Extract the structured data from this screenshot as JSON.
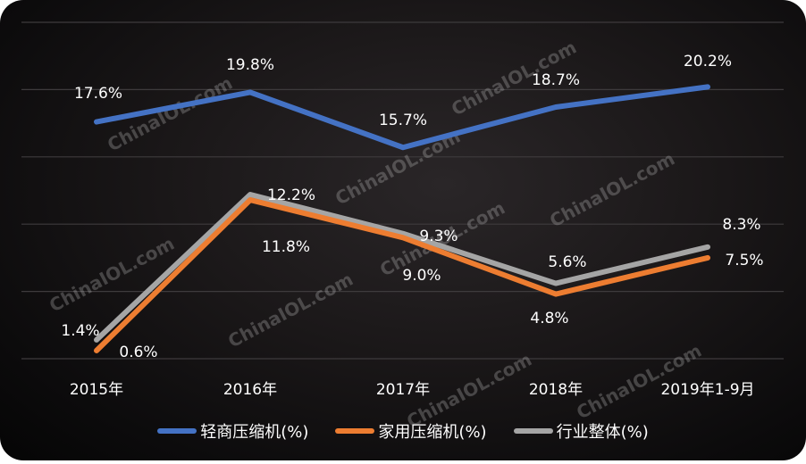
{
  "chart_data": {
    "type": "line",
    "title": "",
    "xlabel": "",
    "ylabel": "",
    "categories": [
      "2015年",
      "2016年",
      "2017年",
      "2018年",
      "2019年1-9月"
    ],
    "ylim": [
      0,
      25
    ],
    "grid": true,
    "legend_position": "bottom",
    "series": [
      {
        "name": "轻商压缩机(%)",
        "color": "#4472c4",
        "values": [
          17.6,
          19.8,
          15.7,
          18.7,
          20.2
        ],
        "labels": [
          "17.6%",
          "19.8%",
          "15.7%",
          "18.7%",
          "20.2%"
        ]
      },
      {
        "name": "家用压缩机(%)",
        "color": "#ed7d31",
        "values": [
          0.6,
          11.8,
          9.0,
          4.8,
          7.5
        ],
        "labels": [
          "0.6%",
          "11.8%",
          "9.0%",
          "4.8%",
          "7.5%"
        ]
      },
      {
        "name": "行业整体(%)",
        "color": "#a5a5a5",
        "values": [
          1.4,
          12.2,
          9.3,
          5.6,
          8.3
        ],
        "labels": [
          "1.4%",
          "12.2%",
          "9.3%",
          "5.6%",
          "8.3%"
        ]
      }
    ]
  },
  "legend": {
    "items": [
      {
        "label": "轻商压缩机(%)",
        "color": "#4472c4"
      },
      {
        "label": "家用压缩机(%)",
        "color": "#ed7d31"
      },
      {
        "label": "行业整体(%)",
        "color": "#a5a5a5"
      }
    ]
  },
  "watermark": "ChinaIOL.com"
}
